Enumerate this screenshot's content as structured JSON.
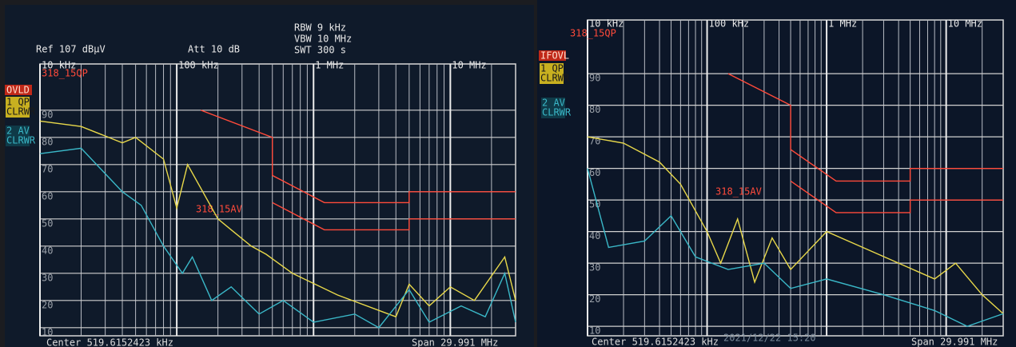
{
  "chart_data": [
    {
      "type": "line",
      "xscale": "log",
      "grid": true,
      "ref": "Ref  107 dBµV",
      "att": "Att  10 dB",
      "rbw": "RBW 9 kHz",
      "vbw": "VBW 10 MHz",
      "swt": "SWT 300 s",
      "center": "Center 519.6152423 kHz",
      "span": "Span 29.991 MHz",
      "status": "OVLD",
      "xlim": [
        0.01,
        30
      ],
      "ylim": [
        7,
        107
      ],
      "xticks": [
        {
          "value": 0.01,
          "label": "10 kHz"
        },
        {
          "value": 0.1,
          "label": "100 kHz"
        },
        {
          "value": 1,
          "label": "1 MHz"
        },
        {
          "value": 10,
          "label": "10 MHz"
        }
      ],
      "yticks": [
        10,
        20,
        30,
        40,
        50,
        60,
        70,
        80,
        90
      ],
      "series": [
        {
          "name": "318_15QP",
          "color": "#ff4a3a",
          "x": [
            0.15,
            0.5,
            0.5,
            1.2,
            5,
            5,
            30
          ],
          "values": [
            90,
            80,
            66,
            56,
            56,
            60,
            60
          ]
        },
        {
          "name": "318_15AV",
          "color": "#ff4a3a",
          "x": [
            0.5,
            1.2,
            5,
            5,
            30
          ],
          "values": [
            56,
            46,
            46,
            50,
            50
          ]
        },
        {
          "name": "1 QP",
          "mode": "CLRWR",
          "color": "#e8d84a",
          "x": [
            0.01,
            0.02,
            0.04,
            0.05,
            0.08,
            0.1,
            0.12,
            0.2,
            0.25,
            0.35,
            0.45,
            0.7,
            1.5,
            4,
            5,
            7,
            10,
            15,
            25,
            30
          ],
          "values": [
            86,
            84,
            78,
            80,
            72,
            54,
            70,
            50,
            46,
            40,
            37,
            30,
            22,
            14,
            26,
            18,
            25,
            20,
            36,
            20
          ]
        },
        {
          "name": "2 AV",
          "mode": "CLRWR",
          "color": "#3ab8c8",
          "x": [
            0.01,
            0.02,
            0.04,
            0.055,
            0.08,
            0.11,
            0.13,
            0.18,
            0.25,
            0.4,
            0.6,
            1,
            2,
            3,
            5,
            7,
            12,
            18,
            25,
            30
          ],
          "values": [
            74,
            76,
            60,
            55,
            40,
            30,
            36,
            20,
            25,
            15,
            20,
            12,
            15,
            10,
            24,
            12,
            18,
            14,
            30,
            12
          ]
        }
      ]
    },
    {
      "type": "line",
      "xscale": "log",
      "grid": true,
      "center": "Center 519.6152423 kHz",
      "span": "Span 29.991 MHz",
      "status": "IFOVL",
      "timestamp": "2021/12/22 15:20",
      "xlim": [
        0.01,
        30
      ],
      "ylim": [
        7,
        107
      ],
      "xticks": [
        {
          "value": 0.01,
          "label": "10 kHz"
        },
        {
          "value": 0.1,
          "label": "100 kHz"
        },
        {
          "value": 1,
          "label": "1 MHz"
        },
        {
          "value": 10,
          "label": "10 MHz"
        }
      ],
      "yticks": [
        10,
        20,
        30,
        40,
        50,
        60,
        70,
        80,
        90
      ],
      "series": [
        {
          "name": "318_15QP",
          "color": "#ff4a3a",
          "x": [
            0.15,
            0.5,
            0.5,
            1.2,
            5,
            5,
            30
          ],
          "values": [
            90,
            80,
            66,
            56,
            56,
            60,
            60
          ]
        },
        {
          "name": "318_15AV",
          "color": "#ff4a3a",
          "x": [
            0.5,
            1.2,
            5,
            5,
            30
          ],
          "values": [
            56,
            46,
            46,
            50,
            50
          ]
        },
        {
          "name": "1 QP",
          "mode": "CLRWR",
          "color": "#e8d84a",
          "x": [
            0.01,
            0.02,
            0.04,
            0.06,
            0.1,
            0.13,
            0.18,
            0.25,
            0.35,
            0.5,
            1,
            2,
            4,
            8,
            12,
            20,
            30
          ],
          "values": [
            70,
            68,
            62,
            55,
            40,
            30,
            44,
            24,
            38,
            28,
            40,
            35,
            30,
            25,
            30,
            20,
            14
          ]
        },
        {
          "name": "2 AV",
          "mode": "CLRWR",
          "color": "#3ab8c8",
          "x": [
            0.01,
            0.015,
            0.03,
            0.05,
            0.08,
            0.15,
            0.3,
            0.5,
            1,
            3,
            8,
            15,
            30
          ],
          "values": [
            60,
            35,
            37,
            45,
            32,
            28,
            30,
            22,
            25,
            20,
            15,
            10,
            14
          ]
        }
      ]
    }
  ]
}
